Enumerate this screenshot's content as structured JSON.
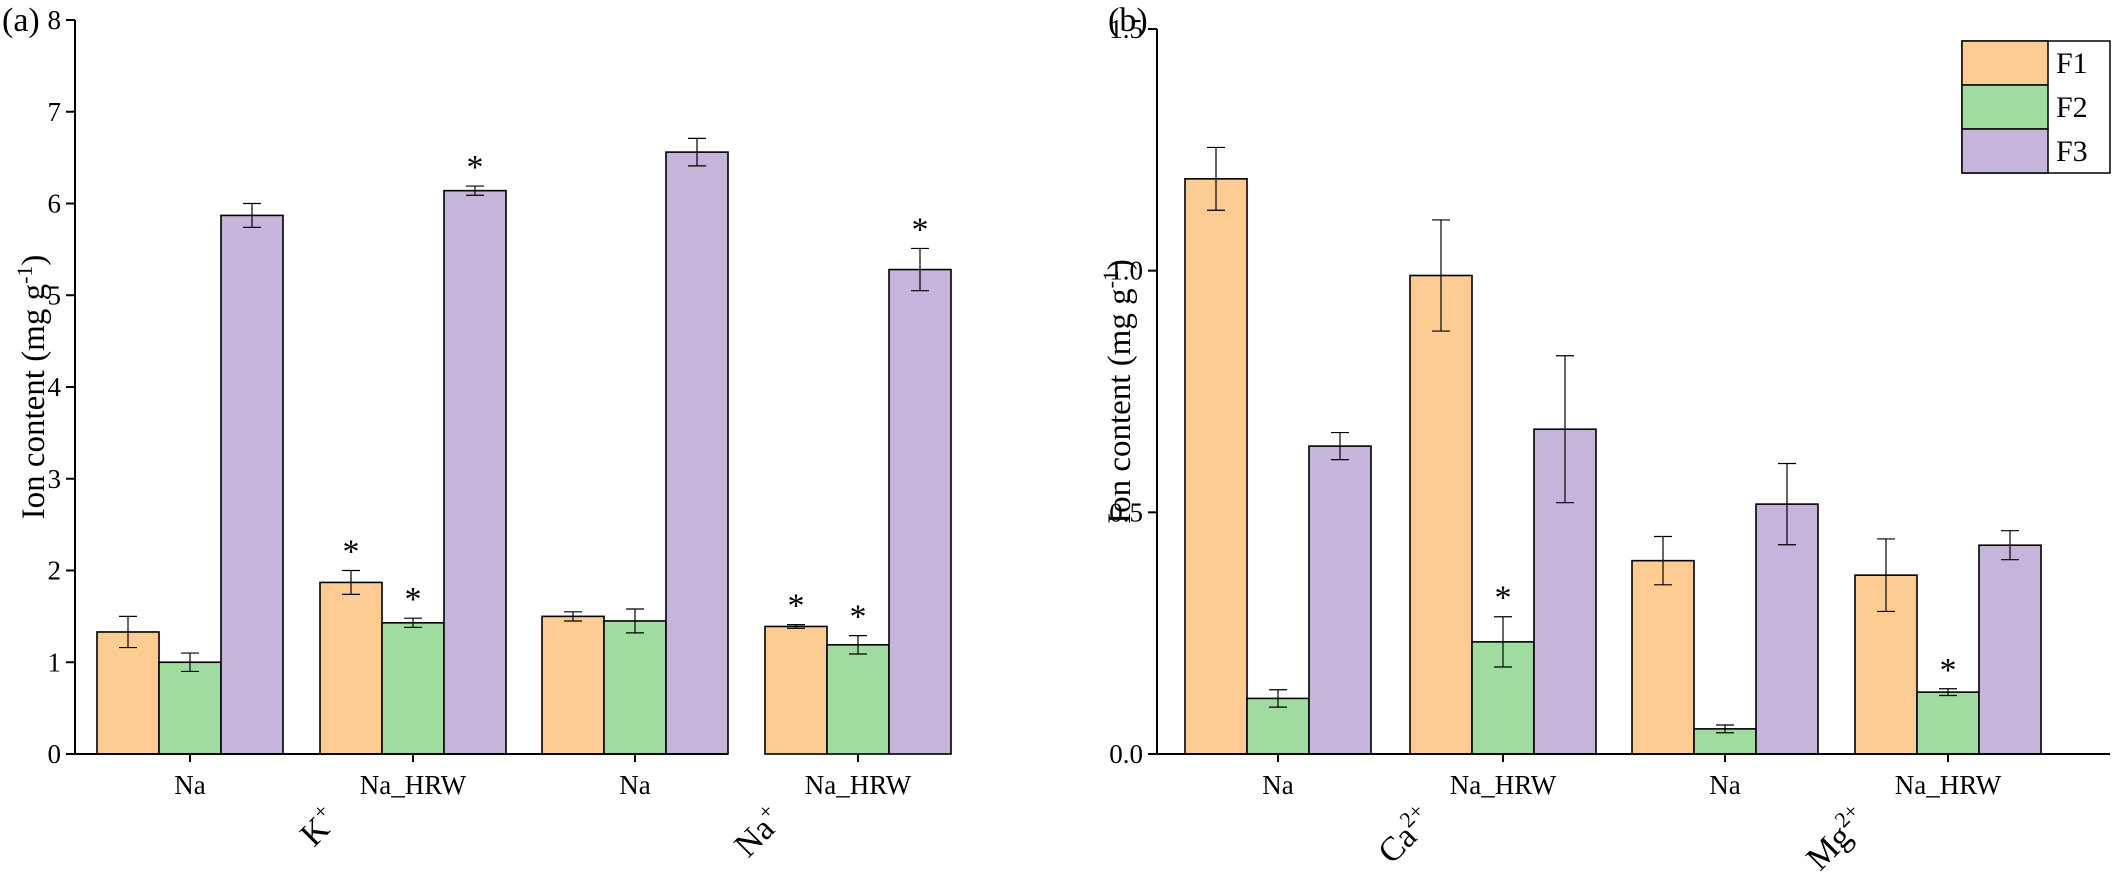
{
  "series_names": [
    "F1",
    "F2",
    "F3"
  ],
  "colors": {
    "F1": "#FCCC92",
    "F2": "#A0DCA0",
    "F3": "#C5B5DA",
    "axis": "#000000"
  },
  "chart_data": [
    {
      "type": "bar",
      "panel_label": "(a)",
      "ylabel_main": "Ion content (mg g",
      "ylabel_sup": "-1",
      "ylabel_close": ")",
      "ylim": [
        0,
        8
      ],
      "yticks": [
        "0",
        "1",
        "2",
        "3",
        "4",
        "5",
        "6",
        "7",
        "8"
      ],
      "categories": [
        "Na",
        "Na_HRW",
        "Na",
        "Na_HRW"
      ],
      "groups": [
        {
          "base": "K",
          "sup": "+"
        },
        {
          "base": "Na",
          "sup": "+"
        }
      ],
      "legend": false,
      "grid": false,
      "series": [
        {
          "name": "F1",
          "values": [
            1.33,
            1.87,
            1.5,
            1.39
          ],
          "errors": [
            0.17,
            0.13,
            0.05,
            0.02
          ],
          "significant": [
            false,
            true,
            false,
            true
          ]
        },
        {
          "name": "F2",
          "values": [
            1.0,
            1.43,
            1.45,
            1.19
          ],
          "errors": [
            0.1,
            0.05,
            0.13,
            0.1
          ],
          "significant": [
            false,
            true,
            false,
            true
          ]
        },
        {
          "name": "F3",
          "values": [
            5.87,
            6.14,
            6.56,
            5.28
          ],
          "errors": [
            0.13,
            0.05,
            0.15,
            0.23
          ],
          "significant": [
            false,
            true,
            false,
            true
          ]
        }
      ],
      "significance_marker": "*"
    },
    {
      "type": "bar",
      "panel_label": "(b)",
      "ylabel_main": "Ion content (mg g",
      "ylabel_sup": "-1",
      "ylabel_close": ")",
      "ylim": [
        0,
        1.5
      ],
      "yticks": [
        "0.0",
        "0.5",
        "1.0",
        "1.5"
      ],
      "categories": [
        "Na",
        "Na_HRW",
        "Na",
        "Na_HRW"
      ],
      "groups": [
        {
          "base": "Ca",
          "sup": "2+"
        },
        {
          "base": "Mg",
          "sup": "2+"
        }
      ],
      "legend": true,
      "legend_position": "top-right",
      "grid": false,
      "series": [
        {
          "name": "F1",
          "values": [
            1.19,
            0.99,
            0.4,
            0.37
          ],
          "errors": [
            0.065,
            0.115,
            0.05,
            0.075
          ],
          "significant": [
            false,
            false,
            false,
            false
          ]
        },
        {
          "name": "F2",
          "values": [
            0.115,
            0.232,
            0.052,
            0.128
          ],
          "errors": [
            0.018,
            0.052,
            0.008,
            0.007
          ],
          "significant": [
            false,
            true,
            false,
            true
          ]
        },
        {
          "name": "F3",
          "values": [
            0.637,
            0.672,
            0.517,
            0.432
          ],
          "errors": [
            0.028,
            0.152,
            0.084,
            0.03
          ],
          "significant": [
            false,
            false,
            false,
            false
          ]
        }
      ],
      "significance_marker": "*"
    }
  ]
}
